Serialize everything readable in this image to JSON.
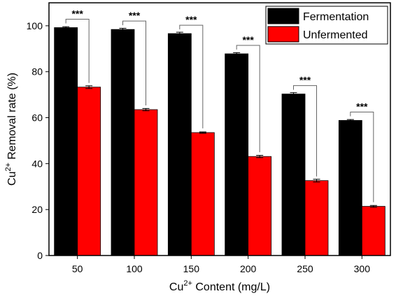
{
  "chart_data": {
    "type": "bar",
    "categories": [
      "50",
      "100",
      "150",
      "200",
      "250",
      "300"
    ],
    "series": [
      {
        "name": "Fermentation",
        "color": "#000000",
        "values": [
          99.2,
          98.4,
          96.6,
          87.8,
          70.3,
          58.8
        ],
        "errors": [
          0.4,
          0.5,
          0.6,
          0.5,
          0.6,
          0.4
        ]
      },
      {
        "name": "Unfermented",
        "color": "#ff0000",
        "values": [
          73.3,
          63.5,
          53.5,
          43.1,
          32.6,
          21.4
        ],
        "errors": [
          0.6,
          0.5,
          0.3,
          0.5,
          0.6,
          0.4
        ]
      }
    ],
    "significance": [
      "***",
      "***",
      "***",
      "***",
      "***",
      "***"
    ],
    "ylim": [
      0,
      110
    ],
    "yticks": [
      "0",
      "20",
      "40",
      "60",
      "80",
      "100"
    ],
    "xlabel": {
      "base": "Cu",
      "sup": "2+",
      "rest": " Content (mg/L)"
    },
    "ylabel": {
      "base": "Cu",
      "sup": "2+",
      "rest": " Removal rate (%)"
    },
    "grid": false,
    "legend_position": "top-right"
  }
}
